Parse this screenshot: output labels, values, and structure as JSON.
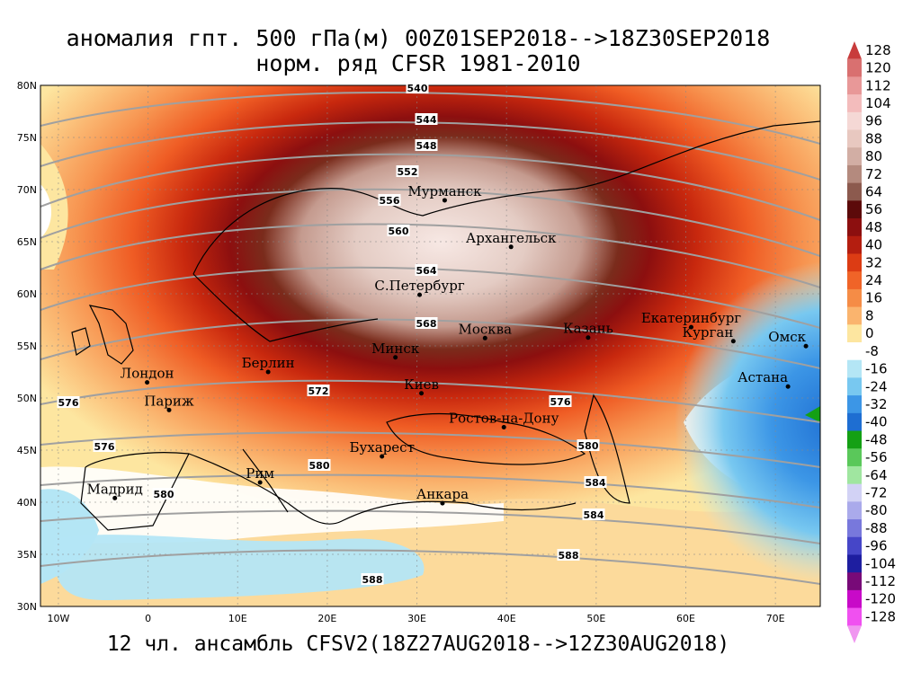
{
  "title": {
    "line1": "аномалия гпт. 500 гПа(м) 00Z01SEP2018-->18Z30SEP2018",
    "line2": "норм. ряд CFSR 1981-2010"
  },
  "footer": "12 чл. ансамбль CFSV2(18Z27AUG2018-->12Z30AUG2018)",
  "map": {
    "lat_ticks": [
      "80N",
      "75N",
      "70N",
      "65N",
      "60N",
      "55N",
      "50N",
      "45N",
      "40N",
      "35N",
      "30N"
    ],
    "lon_ticks": [
      "10W",
      "0",
      "10E",
      "20E",
      "30E",
      "40E",
      "50E",
      "60E",
      "70E"
    ],
    "cities": [
      {
        "name": "Мурманск",
        "lon": 33.1,
        "lat": 68.97
      },
      {
        "name": "Архангельск",
        "lon": 40.5,
        "lat": 64.5
      },
      {
        "name": "С.Петербург",
        "lon": 30.3,
        "lat": 59.9
      },
      {
        "name": "Москва",
        "lon": 37.6,
        "lat": 55.75
      },
      {
        "name": "Казань",
        "lon": 49.1,
        "lat": 55.8
      },
      {
        "name": "Екатеринбург",
        "lon": 60.6,
        "lat": 56.8
      },
      {
        "name": "Курган",
        "lon": 65.3,
        "lat": 55.45
      },
      {
        "name": "Омск",
        "lon": 73.4,
        "lat": 54.98
      },
      {
        "name": "Астана",
        "lon": 71.4,
        "lat": 51.1
      },
      {
        "name": "Минск",
        "lon": 27.6,
        "lat": 53.9
      },
      {
        "name": "Берлин",
        "lon": 13.4,
        "lat": 52.5
      },
      {
        "name": "Лондон",
        "lon": -0.1,
        "lat": 51.5
      },
      {
        "name": "Париж",
        "lon": 2.35,
        "lat": 48.85
      },
      {
        "name": "Киев",
        "lon": 30.5,
        "lat": 50.45
      },
      {
        "name": "Ростов-на-Дону",
        "lon": 39.7,
        "lat": 47.2
      },
      {
        "name": "Бухарест",
        "lon": 26.1,
        "lat": 44.4
      },
      {
        "name": "Рим",
        "lon": 12.5,
        "lat": 41.9
      },
      {
        "name": "Мадрид",
        "lon": -3.7,
        "lat": 40.4
      },
      {
        "name": "Анкара",
        "lon": 32.85,
        "lat": 39.9
      }
    ],
    "contour_labels": [
      "540",
      "544",
      "548",
      "552",
      "556",
      "560",
      "564",
      "568",
      "572",
      "576",
      "580",
      "584",
      "588"
    ],
    "colorbar": {
      "levels": [
        "128",
        "120",
        "112",
        "104",
        "96",
        "88",
        "80",
        "72",
        "64",
        "56",
        "48",
        "40",
        "32",
        "24",
        "16",
        "8",
        "0",
        "-8",
        "-16",
        "-24",
        "-32",
        "-40",
        "-48",
        "-56",
        "-64",
        "-72",
        "-80",
        "-88",
        "-96",
        "-104",
        "-112",
        "-120",
        "-128"
      ],
      "colors": [
        "#c83c3c",
        "#d97070",
        "#e89898",
        "#f3bcbc",
        "#f5d8d5",
        "#e8c8c0",
        "#d2aea4",
        "#b48a7e",
        "#8c5a4e",
        "#5c0a0a",
        "#8c0f0f",
        "#b41e10",
        "#dc3c14",
        "#f06428",
        "#f58c46",
        "#fab46e",
        "#fde6a0",
        "#ffffff",
        "#b4e6f5",
        "#78c8f0",
        "#3c96e6",
        "#1e6ed2",
        "#14a014",
        "#5ac85a",
        "#a0e6a0",
        "#d2d2f5",
        "#aaaaeb",
        "#7878dc",
        "#4646c8",
        "#1e1ea0",
        "#780a78",
        "#c80ac8",
        "#f050f0",
        "#f096f0"
      ]
    }
  }
}
